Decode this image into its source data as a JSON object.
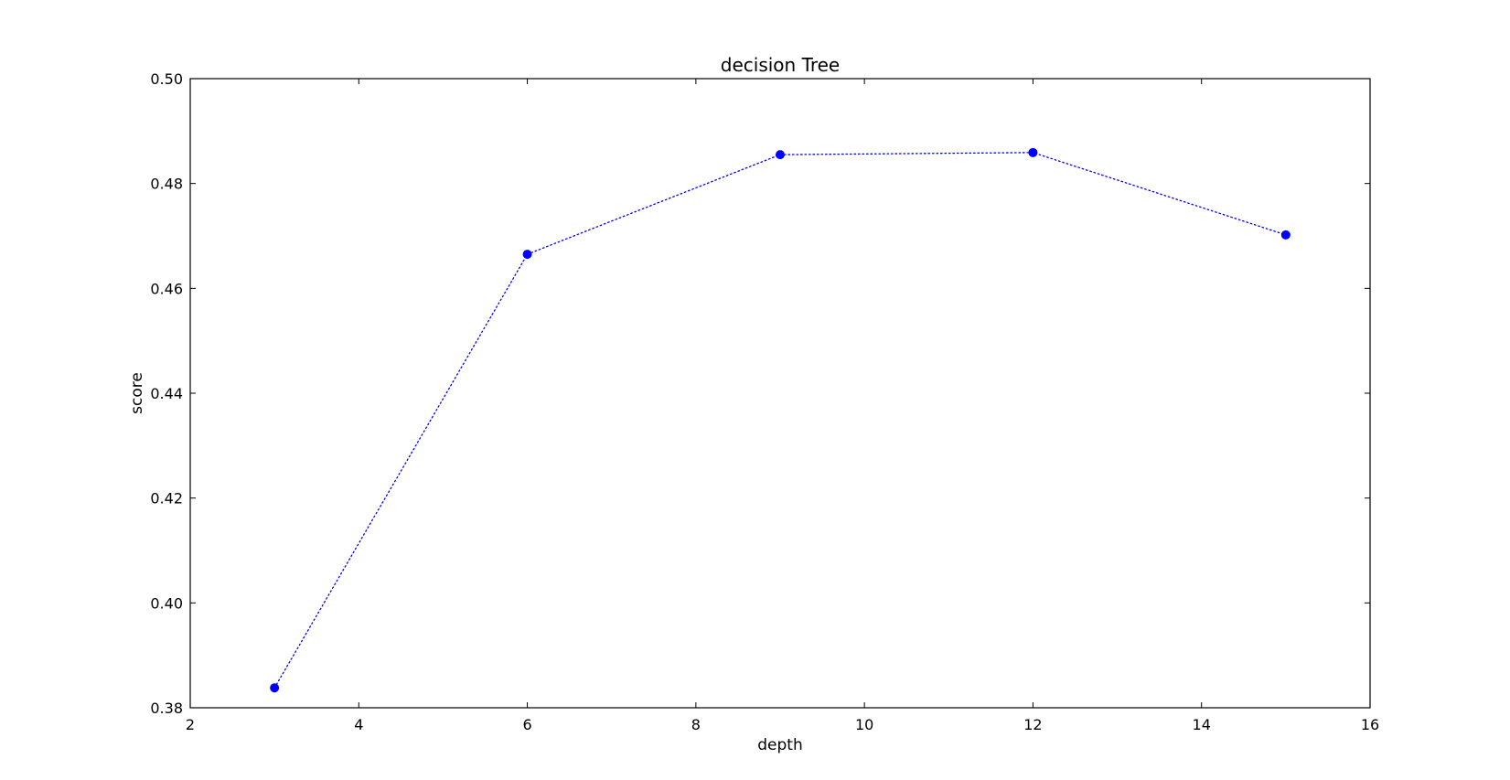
{
  "chart_data": {
    "type": "line",
    "title": "decision Tree",
    "xlabel": "depth",
    "ylabel": "score",
    "xlim": [
      2,
      16
    ],
    "ylim": [
      0.38,
      0.5
    ],
    "xticks": [
      2,
      4,
      6,
      8,
      10,
      12,
      14,
      16
    ],
    "yticks": [
      0.38,
      0.4,
      0.42,
      0.44,
      0.46,
      0.48,
      0.5
    ],
    "xtick_labels": [
      "2",
      "4",
      "6",
      "8",
      "10",
      "12",
      "14",
      "16"
    ],
    "ytick_labels": [
      "0.38",
      "0.40",
      "0.42",
      "0.44",
      "0.46",
      "0.48",
      "0.50"
    ],
    "grid": false,
    "line_style": "dotted",
    "marker": "circle",
    "color": "#0000ff",
    "series": [
      {
        "x": [
          3,
          6,
          9,
          12,
          15
        ],
        "values": [
          0.3838,
          0.4665,
          0.4855,
          0.4859,
          0.4702
        ]
      }
    ]
  }
}
